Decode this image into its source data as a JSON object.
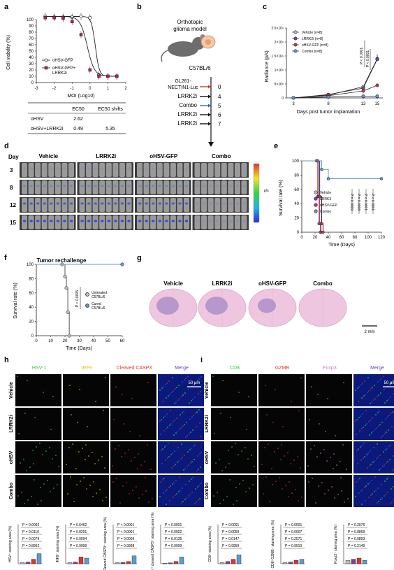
{
  "panels": {
    "a": "a",
    "b": "b",
    "c": "c",
    "d": "d",
    "e": "e",
    "f": "f",
    "g": "g",
    "h": "h",
    "i": "i"
  },
  "panel_a": {
    "ylabel": "Cell viability (%)",
    "xlabel": "MOI (Log10)",
    "yticks": [
      "0",
      "10",
      "20",
      "30",
      "40",
      "50",
      "60",
      "70",
      "80",
      "90",
      "100"
    ],
    "xticks": [
      "-3",
      "-2",
      "-1",
      "0",
      "1",
      "2"
    ],
    "legend": [
      "oHSV-GFP",
      "oHSV-GFP+",
      "LRRK2i"
    ],
    "table": {
      "head": [
        "EC50",
        "EC50 shifts"
      ],
      "rows": [
        {
          "name": "oHSV",
          "ec50": "2.62",
          "shift": ""
        },
        {
          "name": "oHSV+LRRK2i",
          "ec50": "0.49",
          "shift": "5.35"
        }
      ]
    }
  },
  "panel_b": {
    "title1": "Orthotopic",
    "title2": "glioma model",
    "strain": "C57BL/6",
    "steps": [
      {
        "label": "GL261-",
        "label2": "NECTIN1-Luc",
        "day": "0",
        "color": "#d9352b"
      },
      {
        "label": "LRRK2i",
        "day": "4",
        "color": "#111111"
      },
      {
        "label": "Combo",
        "day": "5",
        "color": "#1f6fb8"
      },
      {
        "label": "LRRK2i",
        "day": "6",
        "color": "#111111"
      },
      {
        "label": "LRRK2i",
        "day": "7",
        "color": "#111111"
      }
    ]
  },
  "panel_c": {
    "ylabel": "Radiance (p/s)",
    "xlabel": "Days post tumor implantation",
    "yticks": [
      "0",
      "5×10⁸",
      "1×10⁹",
      "1.5×10⁹",
      "2×10⁹",
      "2.5×10⁹"
    ],
    "xticks": [
      "3",
      "8",
      "13",
      "15"
    ],
    "legend": [
      "Vehicle (n=8)",
      "LRRK2i (n=8)",
      "oHSV-GFP (n=8)",
      "Combo (n=8)"
    ],
    "pvals": [
      "P < 0.0001",
      "P < 0.0001"
    ]
  },
  "chart_data": [
    {
      "type": "line",
      "xlabel": "MOI (Log10)",
      "ylabel": "Cell viability (%)",
      "xlim": [
        -3,
        2
      ],
      "ylim": [
        0,
        100
      ],
      "series": [
        {
          "name": "oHSV-GFP",
          "x": [
            -2.5,
            -2,
            -1.5,
            -1,
            -0.5,
            0,
            0.5,
            1,
            1.5
          ],
          "y": [
            105,
            104,
            104,
            104,
            105,
            103,
            12,
            10,
            10
          ]
        },
        {
          "name": "oHSV-GFP+ LRRK2i",
          "x": [
            -2.5,
            -2,
            -1.5,
            -1,
            -0.5,
            0,
            0.5,
            1,
            1.5
          ],
          "y": [
            103,
            103,
            102,
            97,
            76,
            20,
            10,
            10,
            10
          ]
        }
      ]
    },
    {
      "type": "line",
      "xlabel": "Days post tumor implantation",
      "ylabel": "Radiance (p/s)",
      "x": [
        3,
        8,
        13,
        15
      ],
      "ylim": [
        0,
        2500000000
      ],
      "series": [
        {
          "name": "Vehicle (n=8)",
          "values": [
            0,
            100000000,
            400000000,
            1400000000
          ]
        },
        {
          "name": "LRRK2i (n=8)",
          "values": [
            0,
            120000000,
            350000000,
            1380000000
          ]
        },
        {
          "name": "oHSV-GFP (n=8)",
          "values": [
            0,
            80000000,
            250000000,
            450000000
          ]
        },
        {
          "name": "Combo (n=8)",
          "values": [
            0,
            30000000,
            60000000,
            60000000
          ]
        }
      ]
    },
    {
      "type": "line",
      "xlabel": "Time (Days)",
      "ylabel": "Survival rate (%)",
      "xlim": [
        0,
        120
      ],
      "ylim": [
        0,
        100
      ],
      "series": [
        {
          "name": "Vehicle",
          "x": [
            0,
            22,
            24,
            26,
            28
          ],
          "values": [
            100,
            100,
            50,
            12,
            0
          ]
        },
        {
          "name": "LRRK3",
          "x": [
            0,
            23,
            25,
            27,
            29
          ],
          "values": [
            100,
            100,
            50,
            12,
            0
          ]
        },
        {
          "name": "oHSV-GFP",
          "x": [
            0,
            24,
            27,
            30,
            32
          ],
          "values": [
            100,
            100,
            50,
            12,
            0
          ]
        },
        {
          "name": "Combo",
          "x": [
            0,
            30,
            40,
            120
          ],
          "values": [
            100,
            88,
            75,
            75
          ]
        }
      ]
    },
    {
      "type": "line",
      "xlabel": "Time (Days)",
      "ylabel": "Survival rate (%)",
      "xlim": [
        0,
        60
      ],
      "ylim": [
        0,
        100
      ],
      "series": [
        {
          "name": "Untreated C57BL/6",
          "x": [
            0,
            18,
            20,
            21,
            22,
            23
          ],
          "values": [
            100,
            100,
            83,
            67,
            33,
            0
          ]
        },
        {
          "name": "Cured C57BL/6",
          "x": [
            0,
            60
          ],
          "values": [
            100,
            100
          ]
        }
      ]
    }
  ],
  "panel_d": {
    "rowhead": "Day",
    "cols": [
      "Vehicle",
      "LRRK2i",
      "oHSV-GFP",
      "Combo"
    ],
    "rows": [
      "3",
      "8",
      "12",
      "15"
    ],
    "scale_label": "p/s"
  },
  "panel_e": {
    "ylabel": "Survival rate (%)",
    "xlabel": "Time (Days)",
    "yticks": [
      "0",
      "20",
      "40",
      "60",
      "80",
      "100"
    ],
    "xticks": [
      "0",
      "20",
      "40",
      "60",
      "80",
      "100",
      "120"
    ],
    "legend": [
      "Vehicle",
      "LRRK3",
      "oHSV-GFP",
      "Combo"
    ],
    "pvals": [
      "P = 0.9999",
      "P = 0.0008",
      "P < 0.0001",
      "P < 0.0001"
    ]
  },
  "panel_f": {
    "title": "Tumor rechallenge",
    "ylabel": "Survival rate (%)",
    "xlabel": "Time (Days)",
    "yticks": [
      "0",
      "20",
      "40",
      "60",
      "80",
      "100"
    ],
    "xticks": [
      "0",
      "10",
      "20",
      "30",
      "40",
      "50",
      "60"
    ],
    "legend": [
      [
        "Untreated",
        "C57BL/6"
      ],
      [
        "Cured",
        "C57BL/6"
      ]
    ],
    "pval": "P = 0.0005"
  },
  "panel_g": {
    "cols": [
      "Vehicle",
      "LRRK2i",
      "oHSV-GFP",
      "Combo"
    ],
    "scalebar": "2 mm"
  },
  "panel_h": {
    "cols": [
      {
        "label": "HSV-1",
        "color": "#2ecc40"
      },
      {
        "label": "IRF9",
        "color": "#e6c300"
      },
      {
        "label": "Cleaved CASP3",
        "color": "#e0342c"
      },
      {
        "label": "Merge",
        "color": "#6a3fb5"
      }
    ],
    "rows": [
      "Vehicle",
      "LRRK2i",
      "oHSV",
      "Combo"
    ],
    "scalebar": "50 μm",
    "charts": [
      {
        "ylabel": "HSV⁺ staining area (%)",
        "p": [
          "P = 0.0002",
          "P = 0.0110",
          "P = 0.0079",
          "P = 0.8952"
        ]
      },
      {
        "ylabel": "IRF9⁺ staining area (%)",
        "p": [
          "P = 0.6462",
          "P = 0.0291",
          "P = 0.0094",
          "P = 0.9999"
        ]
      },
      {
        "ylabel": "Cleaved CASP3⁺ staining area (%)",
        "p": [
          "P < 0.0001",
          "P < 0.0001",
          "P = 0.0009",
          "P = 0.9998"
        ]
      },
      {
        "ylabel": "HSV⁺ cleaved CASP3⁺ staining area (%)",
        "p": [
          "P < 0.0001",
          "P = 0.0002",
          "P = 0.0135",
          "P = 0.9999"
        ]
      }
    ]
  },
  "panel_i": {
    "cols": [
      {
        "label": "CD8",
        "color": "#2ecc40"
      },
      {
        "label": "GZMB",
        "color": "#e0342c"
      },
      {
        "label": "Foxp3",
        "color": "#d86fd1"
      },
      {
        "label": "Merge",
        "color": "#6a3fb5"
      }
    ],
    "rows": [
      "Vehicle",
      "LRRK2i",
      "oHSV",
      "Combo"
    ],
    "scalebar": "50 μm",
    "charts": [
      {
        "ylabel": "CD8⁺ staining area (%)",
        "p": [
          "P = 0.0001",
          "P = 0.0059",
          "P = 0.0147",
          "P = 0.9959"
        ]
      },
      {
        "ylabel": "CD8⁺GZMB⁺ staining area (%)",
        "p": [
          "P < 0.0001",
          "P = 0.0007",
          "P = 0.2571",
          "P = 0.9910"
        ]
      },
      {
        "ylabel": "Foxp3⁺ staining area (%)",
        "p": [
          "P = 0.3076",
          "P = 0.8869",
          "P = 0.9893",
          "P = 0.2149"
        ]
      }
    ]
  },
  "colors": {
    "vehicle": "#bdbdbd",
    "lrrk2i": "#7b3fa0",
    "ohsv": "#d9352b",
    "combo": "#5b9bd5"
  }
}
